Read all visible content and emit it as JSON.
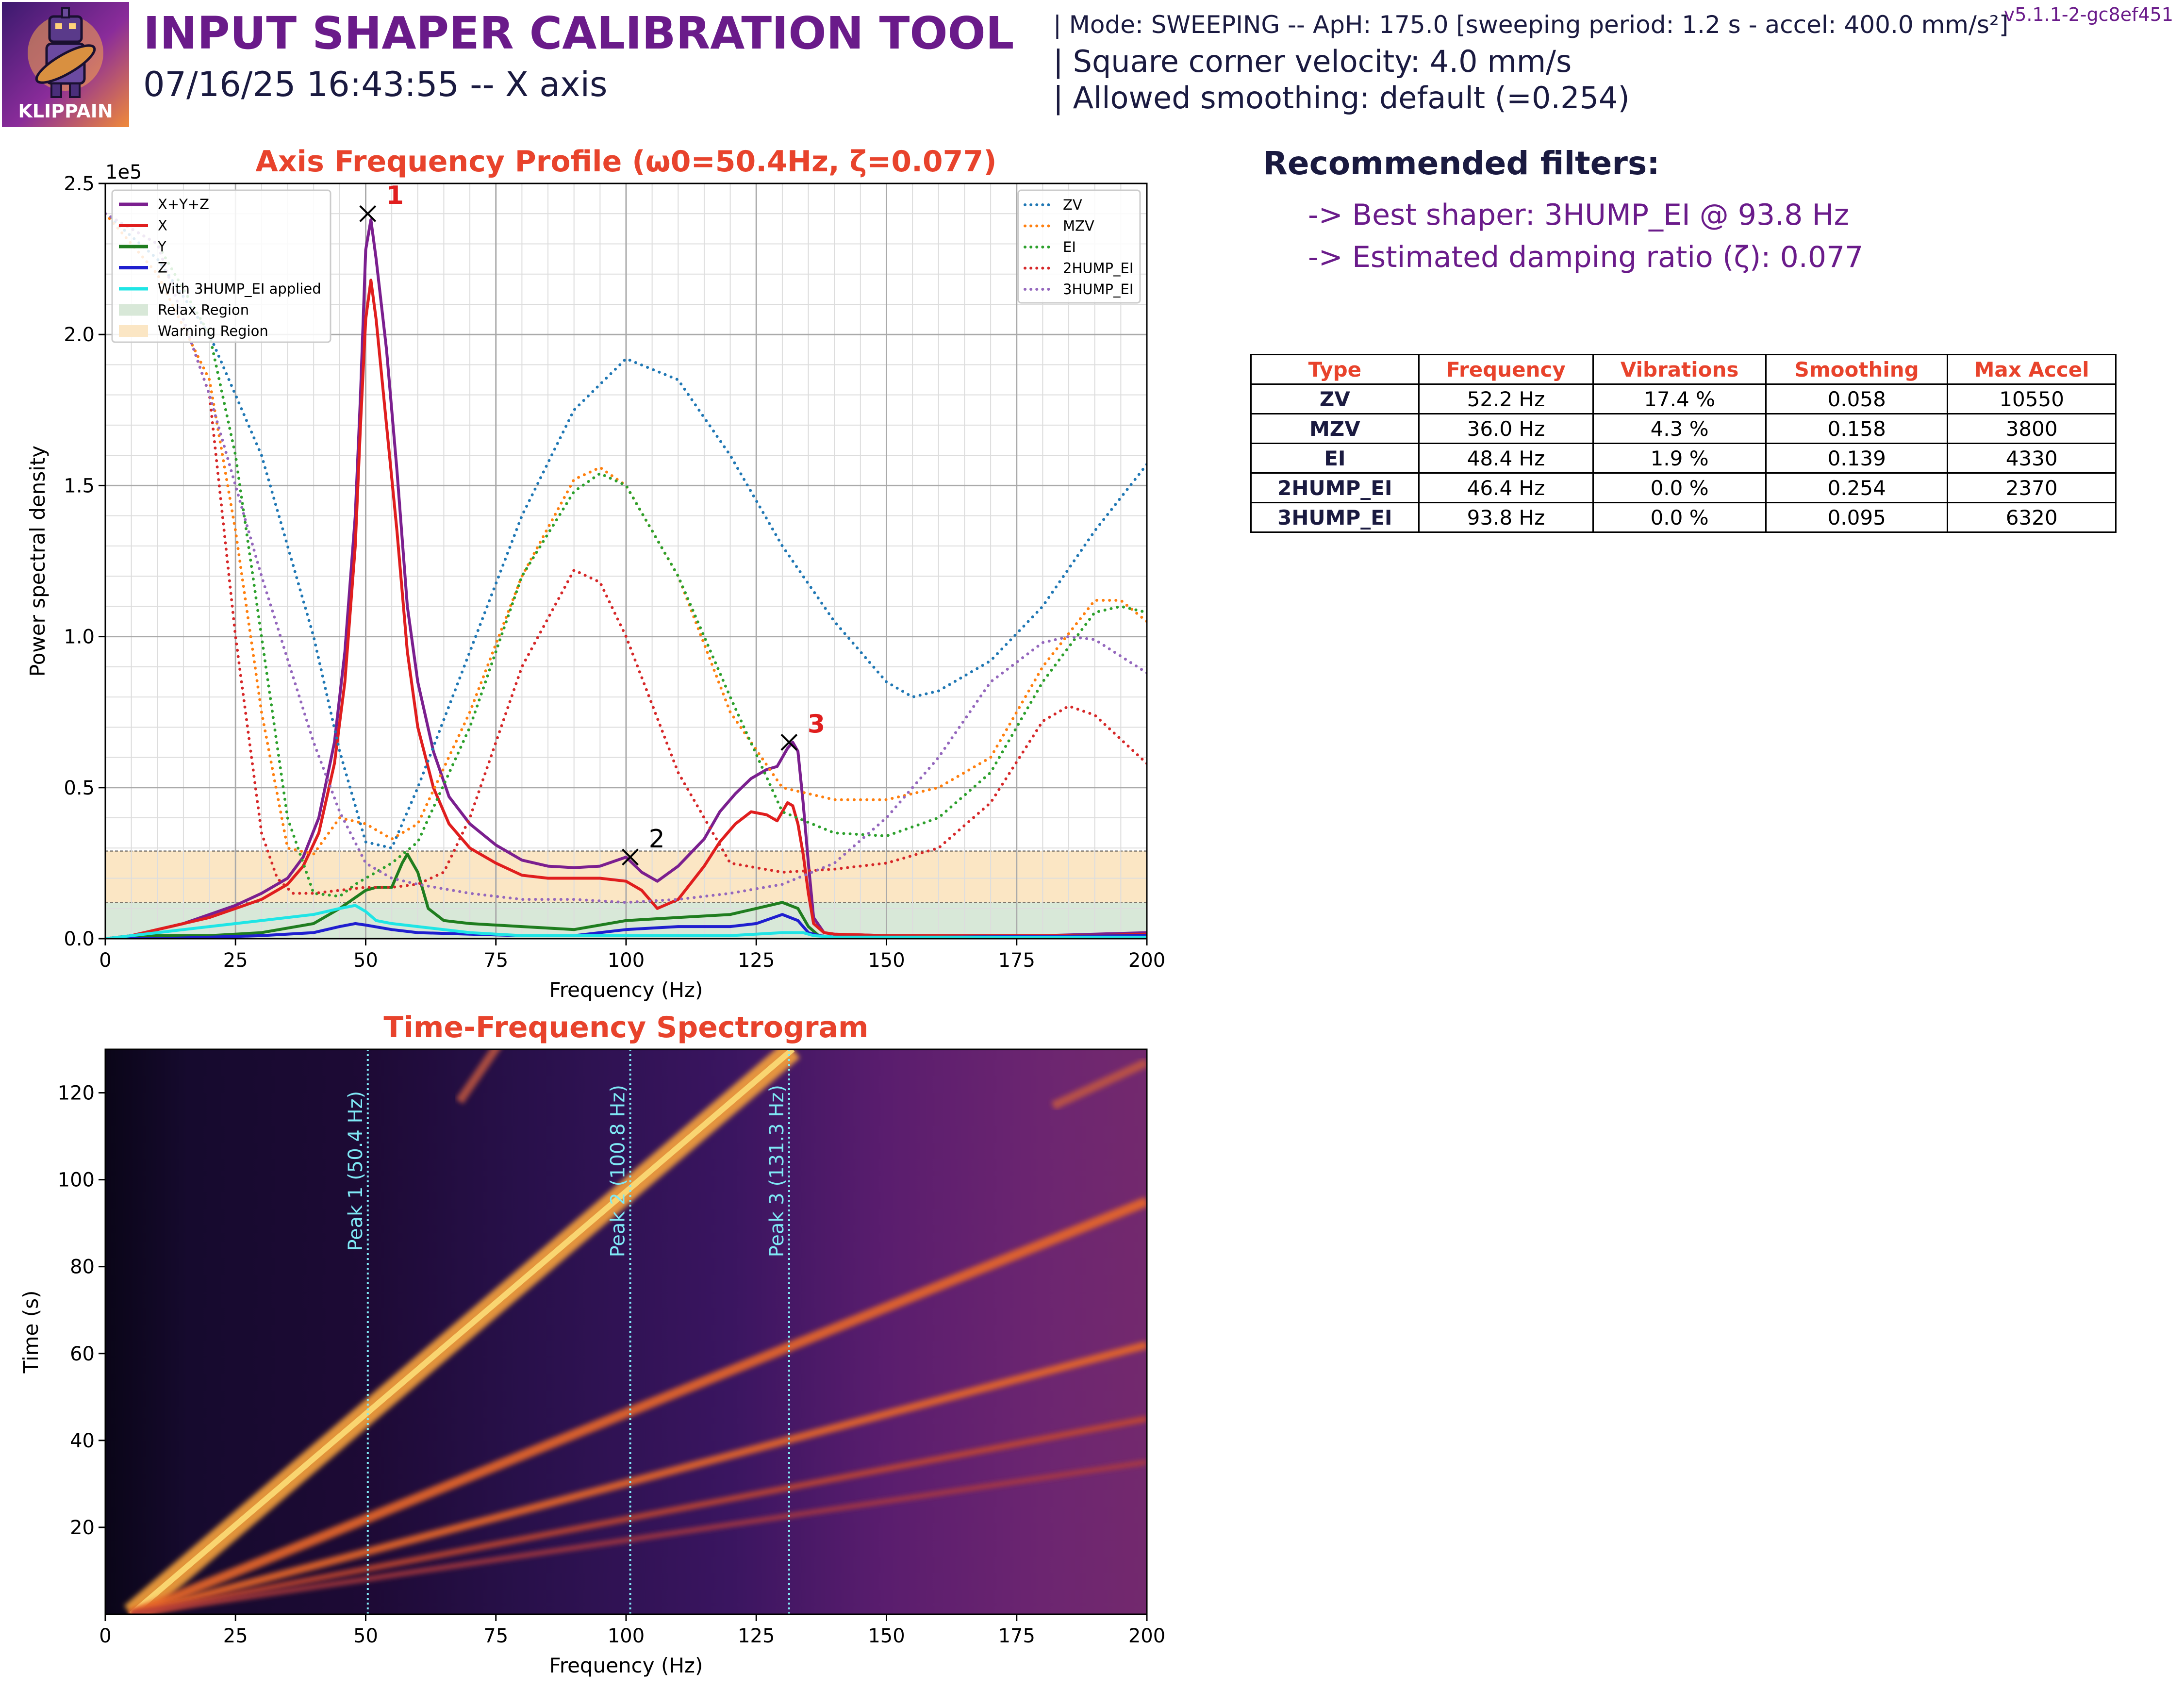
{
  "header": {
    "title": "INPUT SHAPER CALIBRATION TOOL",
    "subtitle": "07/16/25 16:43:55 -- X axis",
    "mode_line": "| Mode: SWEEPING -- ApH: 175.0 [sweeping period: 1.2 s - accel: 400.0 mm/s²]",
    "scv_line": "| Square corner velocity: 4.0 mm/s",
    "smoothing_line": "| Allowed smoothing: default (=0.254)",
    "version": "v5.1.1-2-gc8ef451",
    "logo_text": "KLIPPAIN"
  },
  "recommendations": {
    "title": "Recommended filters:",
    "best_shaper": "-> Best shaper: 3HUMP_EI @ 93.8 Hz",
    "damping": "-> Estimated damping ratio (ζ): 0.077"
  },
  "table": {
    "headers": [
      "Type",
      "Frequency",
      "Vibrations",
      "Smoothing",
      "Max Accel"
    ],
    "rows": [
      [
        "ZV",
        "52.2 Hz",
        "17.4 %",
        "0.058",
        "10550"
      ],
      [
        "MZV",
        "36.0 Hz",
        "4.3 %",
        "0.158",
        "3800"
      ],
      [
        "EI",
        "48.4 Hz",
        "1.9 %",
        "0.139",
        "4330"
      ],
      [
        "2HUMP_EI",
        "46.4 Hz",
        "0.0 %",
        "0.254",
        "2370"
      ],
      [
        "3HUMP_EI",
        "93.8 Hz",
        "0.0 %",
        "0.095",
        "6320"
      ]
    ]
  },
  "colors": {
    "title_purple": "#6a1b8a",
    "chart_title_red": "#e8432c",
    "navy": "#1a1a40",
    "xyz": "#7b1f8f",
    "x": "#e01e1e",
    "y": "#1f7d1f",
    "z": "#1f1fcf",
    "shaped": "#1fe5e5",
    "zv": "#1f77b4",
    "mzv": "#ff7f0e",
    "ei": "#2ca02c",
    "hump2": "#d62728",
    "hump3": "#9467bd",
    "relax": "#d8e8d8",
    "warning": "#fbe6c4"
  },
  "chart_data": [
    {
      "type": "line",
      "title": "Axis Frequency Profile (ω0=50.4Hz, ζ=0.077)",
      "xlabel": "Frequency (Hz)",
      "ylabel": "Power spectral density",
      "y_scale_label": "1e5",
      "xlim": [
        0,
        200
      ],
      "ylim": [
        0,
        2.5
      ],
      "xticks": [
        0,
        25,
        50,
        75,
        100,
        125,
        150,
        175,
        200
      ],
      "xtick_labels": [
        "0",
        "25",
        "50",
        "75",
        "100",
        "125",
        "150",
        "175",
        "200"
      ],
      "yticks": [
        0,
        0.5,
        1.0,
        1.5,
        2.0,
        2.5
      ],
      "ytick_labels": [
        "0.0",
        "0.5",
        "1.0",
        "1.5",
        "2.0",
        "2.5"
      ],
      "grid": true,
      "bands": [
        {
          "name": "Relax Region",
          "from": 0,
          "to": 0.12
        },
        {
          "name": "Warning Region",
          "from": 0.12,
          "to": 0.29
        }
      ],
      "series": [
        {
          "name": "X+Y+Z",
          "key": "xyz",
          "style": "solid",
          "x": [
            0,
            5,
            10,
            15,
            20,
            25,
            30,
            35,
            38,
            41,
            44,
            46,
            48,
            49,
            50,
            51,
            52,
            54,
            56,
            58,
            60,
            63,
            66,
            70,
            75,
            80,
            85,
            90,
            95,
            100,
            103,
            106,
            110,
            115,
            118,
            121,
            124,
            127,
            129,
            130,
            131,
            132,
            133,
            134,
            135,
            136,
            138,
            140,
            150,
            160,
            170,
            180,
            190,
            200
          ],
          "y": [
            0.0,
            0.01,
            0.03,
            0.05,
            0.08,
            0.11,
            0.15,
            0.2,
            0.27,
            0.4,
            0.65,
            0.95,
            1.4,
            1.8,
            2.28,
            2.38,
            2.25,
            1.95,
            1.55,
            1.1,
            0.85,
            0.62,
            0.47,
            0.38,
            0.31,
            0.26,
            0.24,
            0.235,
            0.24,
            0.27,
            0.22,
            0.19,
            0.24,
            0.33,
            0.42,
            0.48,
            0.53,
            0.56,
            0.57,
            0.6,
            0.63,
            0.65,
            0.62,
            0.45,
            0.25,
            0.07,
            0.02,
            0.015,
            0.01,
            0.01,
            0.01,
            0.01,
            0.015,
            0.02
          ]
        },
        {
          "name": "X",
          "key": "x",
          "style": "solid",
          "x": [
            0,
            5,
            10,
            15,
            20,
            25,
            30,
            35,
            38,
            41,
            44,
            46,
            48,
            49,
            50,
            51,
            52,
            54,
            56,
            58,
            60,
            63,
            66,
            70,
            75,
            80,
            85,
            90,
            95,
            100,
            103,
            106,
            110,
            115,
            118,
            121,
            124,
            127,
            129,
            130,
            131,
            132,
            133,
            134,
            135,
            136,
            138,
            140,
            150,
            160,
            170,
            180,
            190,
            200
          ],
          "y": [
            0.0,
            0.01,
            0.03,
            0.05,
            0.07,
            0.1,
            0.13,
            0.18,
            0.24,
            0.35,
            0.58,
            0.85,
            1.3,
            1.7,
            2.05,
            2.18,
            2.05,
            1.7,
            1.35,
            0.95,
            0.7,
            0.5,
            0.38,
            0.3,
            0.25,
            0.21,
            0.2,
            0.2,
            0.2,
            0.19,
            0.16,
            0.1,
            0.13,
            0.24,
            0.32,
            0.38,
            0.42,
            0.41,
            0.39,
            0.42,
            0.45,
            0.44,
            0.38,
            0.28,
            0.15,
            0.05,
            0.02,
            0.015,
            0.01,
            0.01,
            0.01,
            0.01,
            0.01,
            0.015
          ]
        },
        {
          "name": "Y",
          "key": "y",
          "style": "solid",
          "x": [
            0,
            10,
            20,
            30,
            40,
            45,
            50,
            52,
            55,
            57,
            58,
            60,
            62,
            65,
            70,
            80,
            90,
            100,
            110,
            120,
            125,
            130,
            133,
            135,
            137,
            140,
            160,
            200
          ],
          "y": [
            0.0,
            0.01,
            0.01,
            0.02,
            0.05,
            0.1,
            0.16,
            0.17,
            0.17,
            0.25,
            0.28,
            0.22,
            0.1,
            0.06,
            0.05,
            0.04,
            0.03,
            0.06,
            0.07,
            0.08,
            0.1,
            0.12,
            0.1,
            0.04,
            0.01,
            0.005,
            0.005,
            0.01
          ]
        },
        {
          "name": "Z",
          "key": "z",
          "style": "solid",
          "x": [
            0,
            10,
            20,
            30,
            40,
            45,
            48,
            50,
            55,
            60,
            70,
            80,
            90,
            100,
            110,
            120,
            125,
            130,
            133,
            135,
            137,
            140,
            160,
            200
          ],
          "y": [
            0.0,
            0.0,
            0.005,
            0.01,
            0.02,
            0.04,
            0.05,
            0.045,
            0.03,
            0.02,
            0.015,
            0.01,
            0.01,
            0.03,
            0.04,
            0.04,
            0.05,
            0.08,
            0.06,
            0.02,
            0.01,
            0.005,
            0.005,
            0.01
          ]
        },
        {
          "name": "With 3HUMP_EI applied",
          "key": "shaped",
          "style": "solid",
          "x": [
            0,
            10,
            20,
            30,
            40,
            45,
            48,
            50,
            52,
            55,
            60,
            70,
            80,
            100,
            120,
            130,
            134,
            136,
            140,
            200
          ],
          "y": [
            0.0,
            0.02,
            0.04,
            0.06,
            0.08,
            0.1,
            0.11,
            0.09,
            0.06,
            0.05,
            0.04,
            0.02,
            0.01,
            0.01,
            0.01,
            0.02,
            0.02,
            0.01,
            0.005,
            0.005
          ]
        },
        {
          "name": "ZV",
          "key": "zv",
          "style": "dotted",
          "x": [
            0,
            10,
            20,
            30,
            40,
            45,
            50,
            55,
            60,
            70,
            80,
            90,
            100,
            110,
            120,
            130,
            140,
            150,
            155,
            160,
            170,
            180,
            190,
            200
          ],
          "y": [
            2.4,
            2.25,
            2.0,
            1.6,
            1.0,
            0.62,
            0.32,
            0.3,
            0.5,
            0.95,
            1.4,
            1.75,
            1.92,
            1.85,
            1.6,
            1.3,
            1.05,
            0.85,
            0.8,
            0.82,
            0.92,
            1.1,
            1.35,
            1.57
          ]
        },
        {
          "name": "MZV",
          "key": "mzv",
          "style": "dotted",
          "x": [
            0,
            10,
            20,
            25,
            30,
            35,
            40,
            45,
            50,
            55,
            60,
            70,
            80,
            90,
            95,
            100,
            110,
            120,
            130,
            140,
            150,
            160,
            170,
            180,
            190,
            195,
            200
          ],
          "y": [
            2.4,
            2.2,
            1.85,
            1.35,
            0.75,
            0.3,
            0.28,
            0.4,
            0.38,
            0.33,
            0.38,
            0.75,
            1.2,
            1.52,
            1.56,
            1.5,
            1.2,
            0.75,
            0.5,
            0.46,
            0.46,
            0.5,
            0.6,
            0.9,
            1.12,
            1.12,
            1.05
          ]
        },
        {
          "name": "EI",
          "key": "ei",
          "style": "dotted",
          "x": [
            0,
            10,
            20,
            25,
            30,
            35,
            40,
            45,
            48,
            50,
            55,
            60,
            70,
            80,
            90,
            95,
            100,
            110,
            120,
            130,
            140,
            150,
            160,
            170,
            180,
            190,
            195,
            200
          ],
          "y": [
            2.4,
            2.3,
            2.0,
            1.6,
            1.0,
            0.4,
            0.15,
            0.14,
            0.18,
            0.2,
            0.25,
            0.32,
            0.7,
            1.2,
            1.48,
            1.54,
            1.5,
            1.2,
            0.8,
            0.42,
            0.35,
            0.34,
            0.4,
            0.55,
            0.85,
            1.08,
            1.1,
            1.08
          ]
        },
        {
          "name": "2HUMP_EI",
          "key": "hump2",
          "style": "dotted",
          "x": [
            0,
            10,
            20,
            25,
            30,
            33,
            36,
            40,
            45,
            50,
            55,
            60,
            65,
            70,
            80,
            90,
            95,
            100,
            110,
            120,
            130,
            140,
            150,
            160,
            170,
            180,
            185,
            190,
            200
          ],
          "y": [
            2.4,
            2.3,
            1.8,
            1.0,
            0.35,
            0.2,
            0.15,
            0.15,
            0.16,
            0.17,
            0.17,
            0.18,
            0.22,
            0.4,
            0.9,
            1.22,
            1.18,
            1.0,
            0.55,
            0.25,
            0.22,
            0.23,
            0.25,
            0.3,
            0.45,
            0.72,
            0.77,
            0.74,
            0.58
          ]
        },
        {
          "name": "3HUMP_EI",
          "key": "hump3",
          "style": "dotted",
          "x": [
            0,
            10,
            20,
            30,
            40,
            45,
            50,
            55,
            60,
            70,
            80,
            90,
            100,
            110,
            120,
            130,
            140,
            150,
            160,
            170,
            180,
            185,
            190,
            200
          ],
          "y": [
            2.4,
            2.3,
            1.8,
            1.2,
            0.65,
            0.42,
            0.25,
            0.2,
            0.18,
            0.15,
            0.13,
            0.13,
            0.12,
            0.13,
            0.15,
            0.18,
            0.25,
            0.4,
            0.6,
            0.85,
            0.98,
            1.0,
            0.99,
            0.88
          ]
        }
      ],
      "peaks": [
        {
          "label": "1",
          "x": 50.4,
          "y": 2.4,
          "color": "#e01e1e"
        },
        {
          "label": "2",
          "x": 100.8,
          "y": 0.27,
          "color": "#000000"
        },
        {
          "label": "3",
          "x": 131.3,
          "y": 0.65,
          "color": "#e01e1e"
        }
      ],
      "legend_left": [
        "X+Y+Z",
        "X",
        "Y",
        "Z",
        "With 3HUMP_EI applied",
        "Relax Region",
        "Warning Region"
      ],
      "legend_right": [
        "ZV",
        "MZV",
        "EI",
        "2HUMP_EI",
        "3HUMP_EI"
      ],
      "legend_placement": [
        "upper-left",
        "upper-right"
      ]
    },
    {
      "type": "heatmap",
      "title": "Time-Frequency Spectrogram",
      "xlabel": "Frequency (Hz)",
      "ylabel": "Time (s)",
      "xlim": [
        0,
        200
      ],
      "ylim": [
        0,
        130
      ],
      "xticks": [
        0,
        25,
        50,
        75,
        100,
        125,
        150,
        175,
        200
      ],
      "xtick_labels": [
        "0",
        "25",
        "50",
        "75",
        "100",
        "125",
        "150",
        "175",
        "200"
      ],
      "yticks": [
        20,
        40,
        60,
        80,
        100,
        120
      ],
      "ytick_labels": [
        "20",
        "40",
        "60",
        "80",
        "100",
        "120"
      ],
      "colormap": "inferno",
      "sweep_lines": [
        {
          "multiple": 1,
          "from": [
            5,
            0
          ],
          "to": [
            132,
            130
          ]
        },
        {
          "multiple": 2,
          "from": [
            5,
            0
          ],
          "to": [
            200,
            95
          ]
        },
        {
          "multiple": 3,
          "from": [
            5,
            0
          ],
          "to": [
            200,
            62
          ]
        },
        {
          "multiple": 4,
          "from": [
            5,
            0
          ],
          "to": [
            200,
            45
          ]
        },
        {
          "multiple": 5,
          "from": [
            5,
            0
          ],
          "to": [
            200,
            35
          ]
        }
      ],
      "peak_lines": [
        {
          "label": "Peak 1 (50.4 Hz)",
          "x": 50.4
        },
        {
          "label": "Peak 2 (100.8 Hz)",
          "x": 100.8
        },
        {
          "label": "Peak 3 (131.3 Hz)",
          "x": 131.3
        }
      ]
    }
  ]
}
